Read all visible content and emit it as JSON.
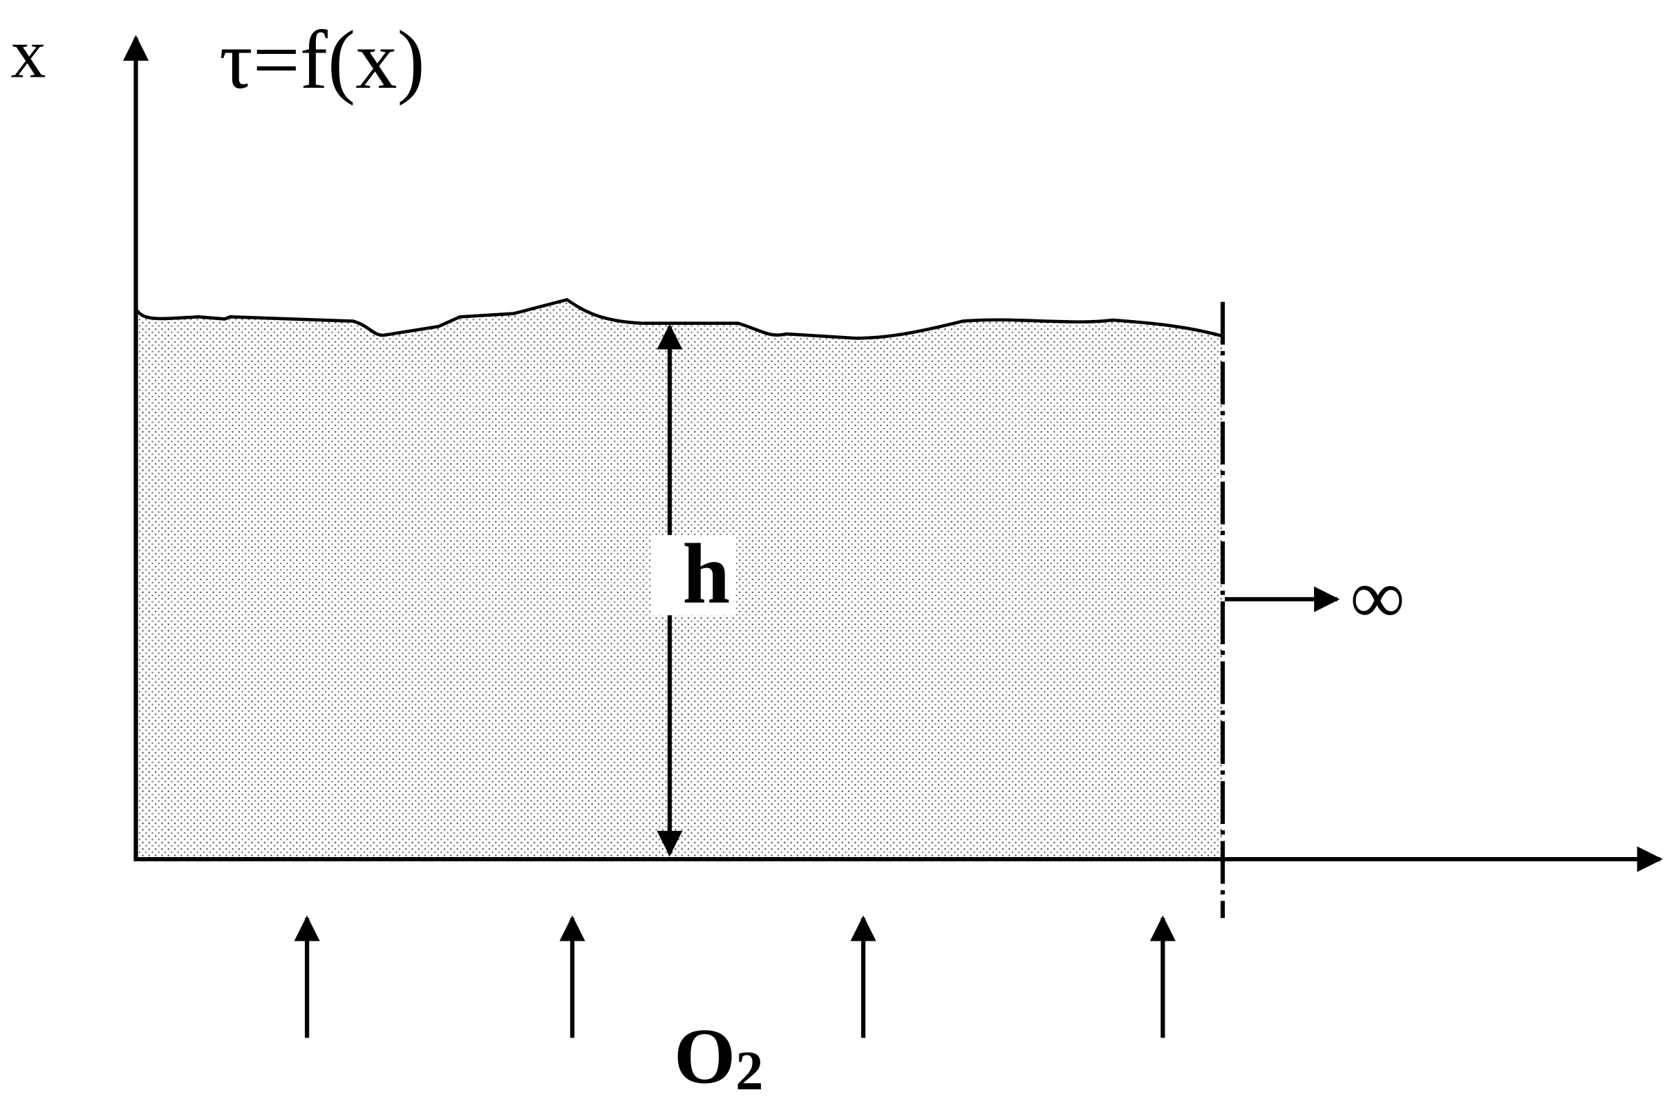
{
  "labels": {
    "x_axis": "x",
    "function": "τ=f(x)",
    "height": "h",
    "infinity": "∞",
    "oxygen": "O",
    "oxygen_subscript": "2"
  }
}
